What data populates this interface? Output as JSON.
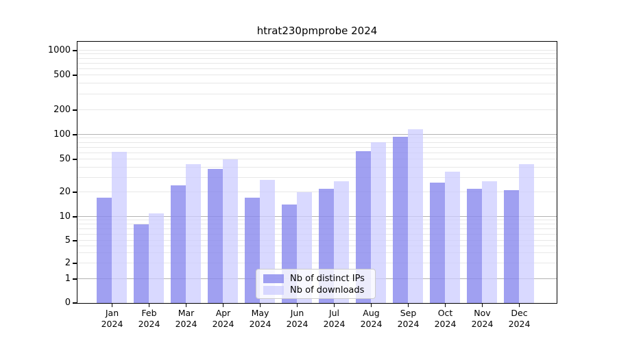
{
  "chart_data": {
    "type": "bar",
    "title": "htrat230pmprobe 2024",
    "x_labels": [
      [
        "Jan",
        "2024"
      ],
      [
        "Feb",
        "2024"
      ],
      [
        "Mar",
        "2024"
      ],
      [
        "Apr",
        "2024"
      ],
      [
        "May",
        "2024"
      ],
      [
        "Jun",
        "2024"
      ],
      [
        "Jul",
        "2024"
      ],
      [
        "Aug",
        "2024"
      ],
      [
        "Sep",
        "2024"
      ],
      [
        "Oct",
        "2024"
      ],
      [
        "Nov",
        "2024"
      ],
      [
        "Dec",
        "2024"
      ]
    ],
    "y_ticks": [
      0,
      1,
      2,
      5,
      10,
      20,
      50,
      100,
      200,
      500,
      1000
    ],
    "yscale": "log-like (0,1,2,5,10,20,50,100,200,500,1000 labeled ticks)",
    "ylim": [
      0,
      1300
    ],
    "xlabel": "",
    "ylabel": "",
    "grid": true,
    "legend_position": "bottom-center",
    "series": [
      {
        "name": "Nb of distinct IPs",
        "color_hex": "#8888ee",
        "opacity": 0.8,
        "values": [
          17,
          8,
          24,
          38,
          17,
          14,
          22,
          63,
          93,
          26,
          22,
          21
        ]
      },
      {
        "name": "Nb of downloads",
        "color_hex": "#ccccff",
        "opacity": 0.75,
        "values": [
          61,
          11,
          43,
          50,
          28,
          20,
          27,
          80,
          115,
          35,
          27,
          43
        ]
      }
    ],
    "colors": {
      "background": "#ffffff",
      "spine": "#000000",
      "grid_major": "#b2b2b2",
      "grid_minor": "#e7e7e7",
      "text": "#000000",
      "legend_border": "#cccccc"
    }
  }
}
